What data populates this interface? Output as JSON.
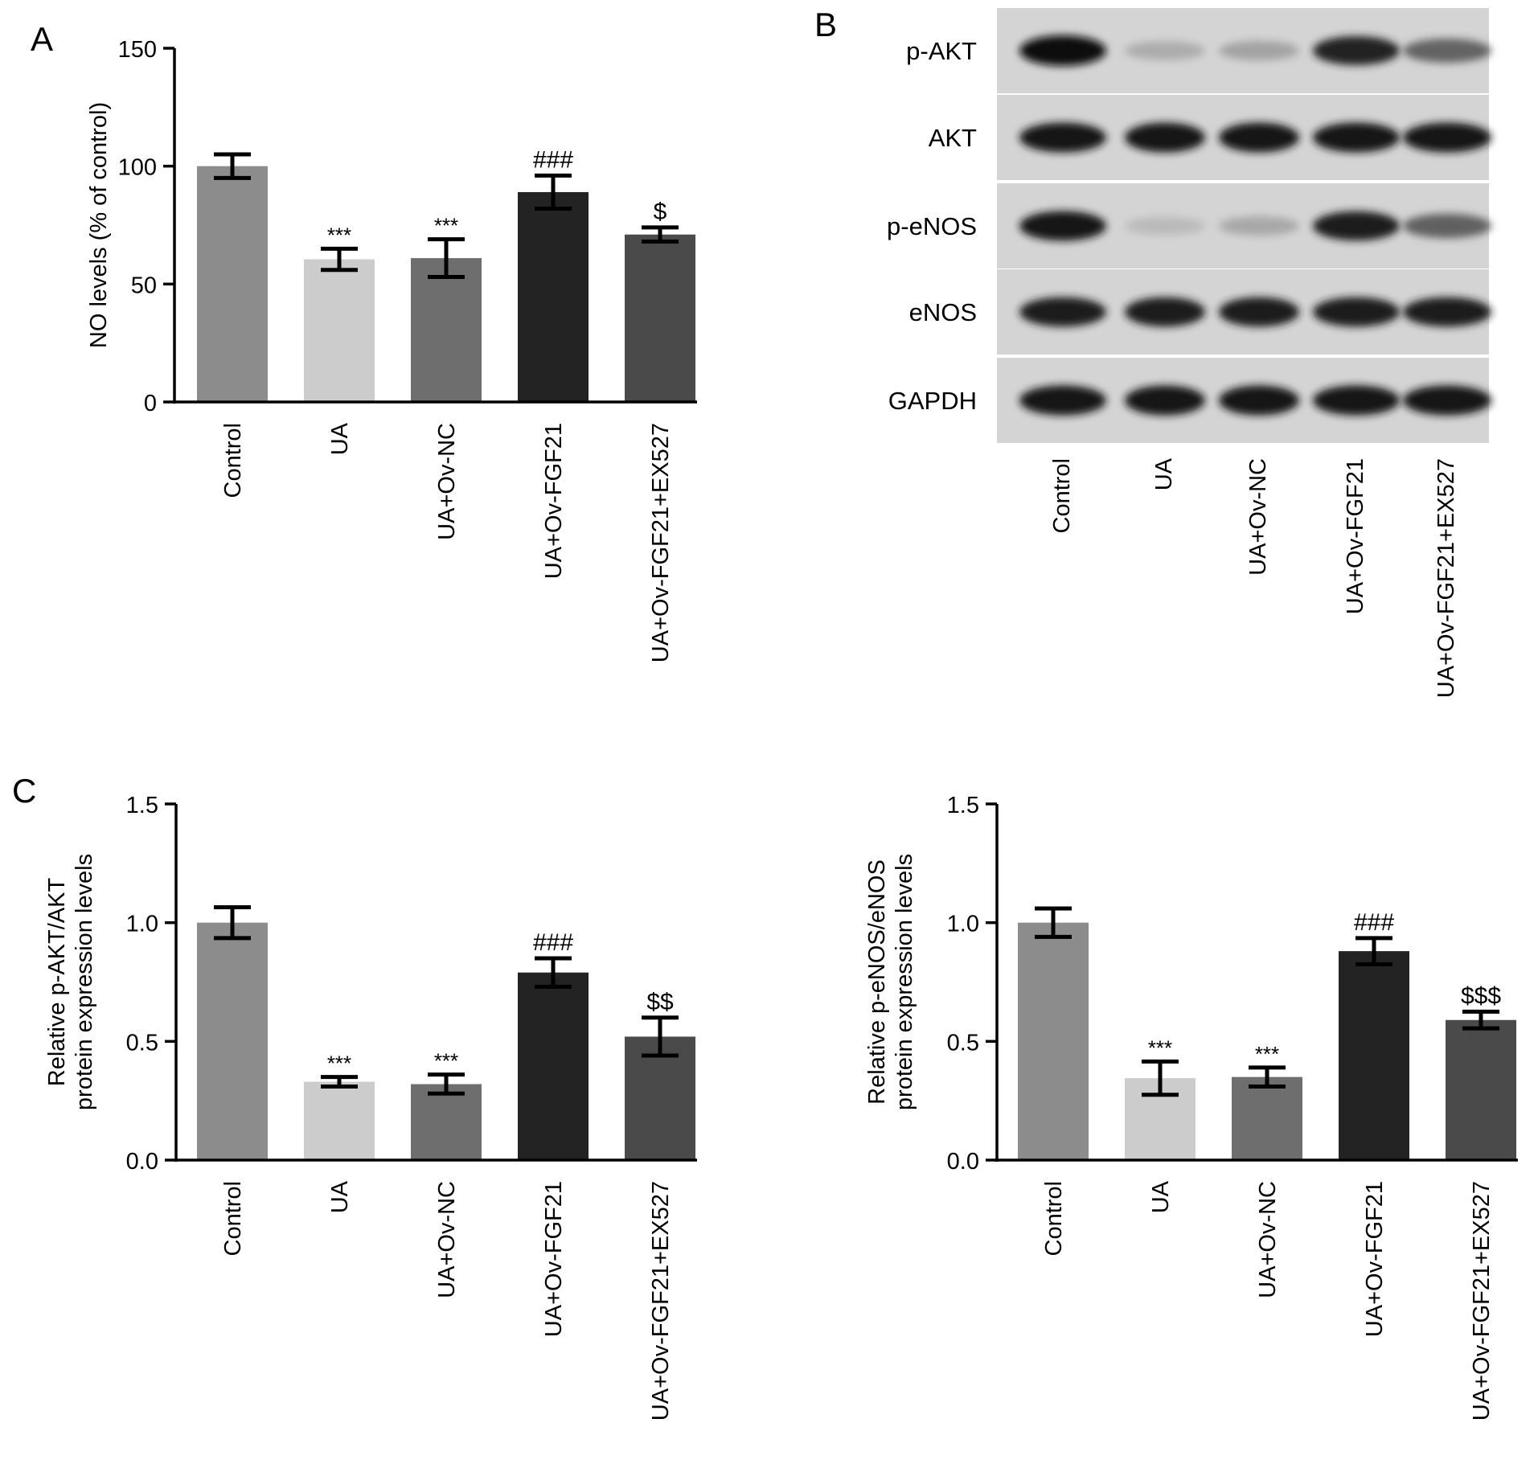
{
  "panel_labels": [
    "A",
    "B",
    "C"
  ],
  "chart_data": [
    {
      "type": "bar",
      "panel": "A",
      "categories": [
        "Control",
        "UA",
        "UA+Ov-NC",
        "UA+Ov-FGF21",
        "UA+Ov-FGF21+EX527"
      ],
      "values": [
        100,
        60.5,
        61,
        89,
        71
      ],
      "errors": [
        5,
        4.5,
        8,
        7,
        3
      ],
      "annotations": [
        "",
        "***",
        "***",
        "###",
        "$"
      ],
      "ylabel": "NO levels (% of control)",
      "xlabel": "",
      "ylim": [
        0,
        150
      ],
      "yticks": [
        0,
        50,
        100,
        150
      ],
      "ytick_labels": [
        "0",
        "50",
        "100",
        "150"
      ],
      "colors": [
        "#8c8c8c",
        "#cccccc",
        "#6e6e6e",
        "#232323",
        "#4a4a4a"
      ]
    },
    {
      "type": "bar",
      "panel": "C-left",
      "categories": [
        "Control",
        "UA",
        "UA+Ov-NC",
        "UA+Ov-FGF21",
        "UA+Ov-FGF21+EX527"
      ],
      "values": [
        1.0,
        0.33,
        0.32,
        0.79,
        0.52
      ],
      "errors": [
        0.065,
        0.02,
        0.04,
        0.06,
        0.08
      ],
      "annotations": [
        "",
        "***",
        "***",
        "###",
        "$$"
      ],
      "ylabel": [
        "Relative p-AKT/AKT",
        "protein expression levels"
      ],
      "xlabel": "",
      "ylim": [
        0,
        1.5
      ],
      "yticks": [
        0,
        0.5,
        1.0,
        1.5
      ],
      "ytick_labels": [
        "0.0",
        "0.5",
        "1.0",
        "1.5"
      ],
      "colors": [
        "#8c8c8c",
        "#cccccc",
        "#6e6e6e",
        "#232323",
        "#4a4a4a"
      ]
    },
    {
      "type": "bar",
      "panel": "C-right",
      "categories": [
        "Control",
        "UA",
        "UA+Ov-NC",
        "UA+Ov-FGF21",
        "UA+Ov-FGF21+EX527"
      ],
      "values": [
        1.0,
        0.345,
        0.35,
        0.88,
        0.59
      ],
      "errors": [
        0.06,
        0.07,
        0.04,
        0.055,
        0.035
      ],
      "annotations": [
        "",
        "***",
        "***",
        "###",
        "$$$"
      ],
      "ylabel": [
        "Relative p-eNOS/eNOS",
        "protein expression levels"
      ],
      "xlabel": "",
      "ylim": [
        0,
        1.5
      ],
      "yticks": [
        0,
        0.5,
        1.0,
        1.5
      ],
      "ytick_labels": [
        "0.0",
        "0.5",
        "1.0",
        "1.5"
      ],
      "colors": [
        "#8c8c8c",
        "#cccccc",
        "#6e6e6e",
        "#232323",
        "#4a4a4a"
      ]
    }
  ],
  "blot": {
    "rows": [
      {
        "label": "p-AKT",
        "intensities": [
          1.0,
          0.28,
          0.32,
          0.9,
          0.6
        ]
      },
      {
        "label": "AKT",
        "intensities": [
          0.95,
          0.95,
          0.95,
          0.95,
          0.95
        ]
      },
      {
        "label": "p-eNOS",
        "intensities": [
          0.95,
          0.22,
          0.3,
          0.92,
          0.62
        ]
      },
      {
        "label": "eNOS",
        "intensities": [
          0.93,
          0.93,
          0.93,
          0.93,
          0.93
        ]
      },
      {
        "label": "GAPDH",
        "intensities": [
          0.96,
          0.96,
          0.96,
          0.96,
          0.96
        ]
      }
    ],
    "lanes": [
      "Control",
      "UA",
      "UA+Ov-NC",
      "UA+Ov-FGF21",
      "UA+Ov-FGF21+EX527"
    ]
  }
}
